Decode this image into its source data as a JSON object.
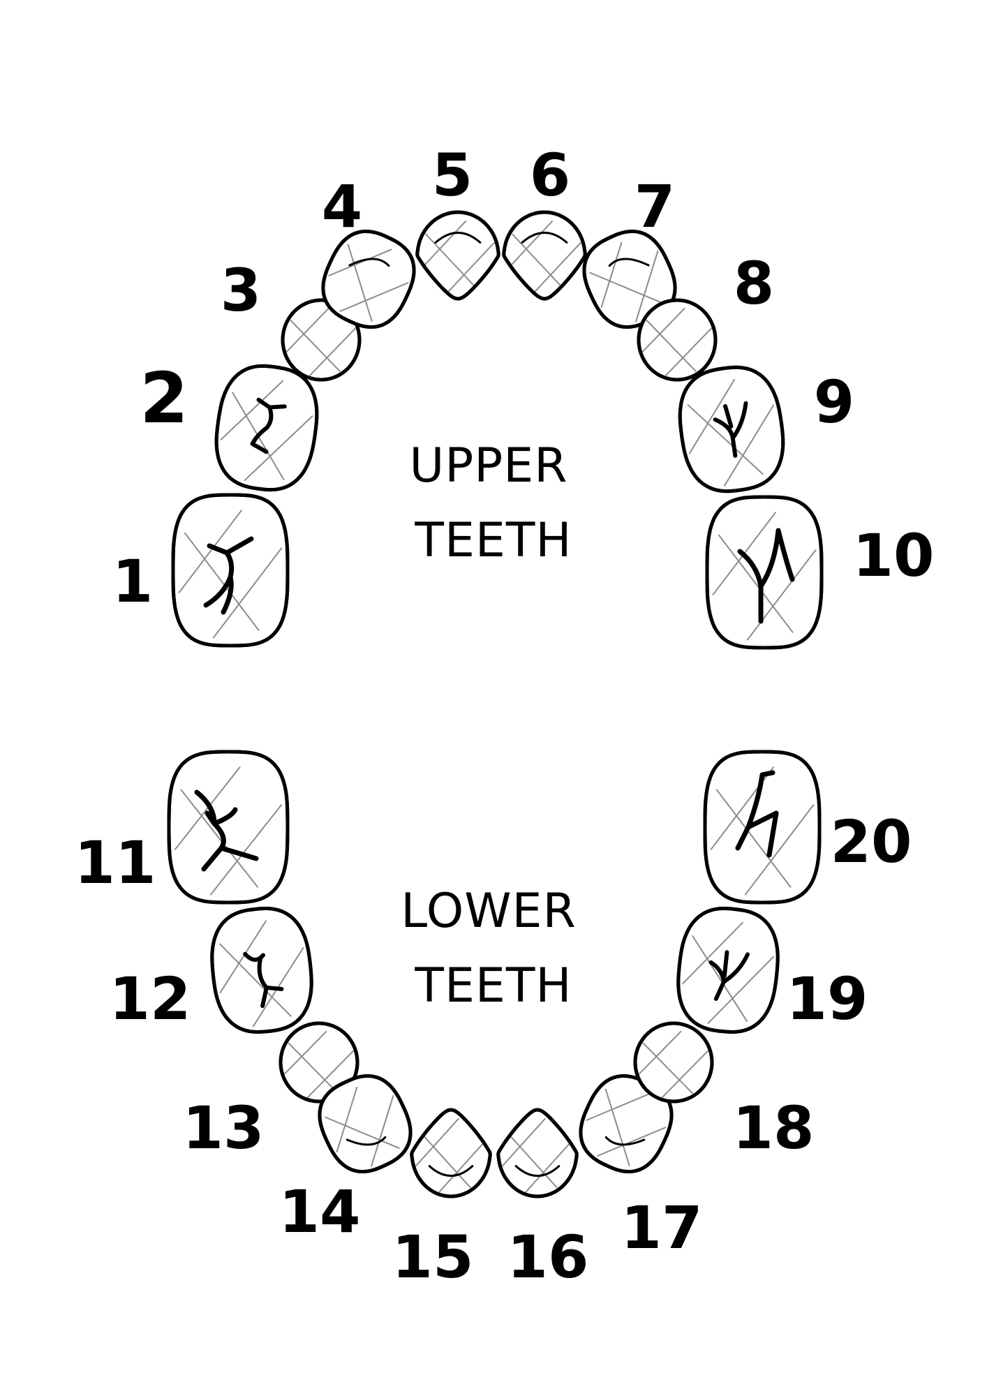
{
  "labels": {
    "upper_line1": "UPPER",
    "upper_line2": "TEETH",
    "lower_line1": "LOWER",
    "lower_line2": "TEETH"
  },
  "teeth": [
    {
      "number": "1"
    },
    {
      "number": "2"
    },
    {
      "number": "3"
    },
    {
      "number": "4"
    },
    {
      "number": "5"
    },
    {
      "number": "6"
    },
    {
      "number": "7"
    },
    {
      "number": "8"
    },
    {
      "number": "9"
    },
    {
      "number": "10"
    },
    {
      "number": "11"
    },
    {
      "number": "12"
    },
    {
      "number": "13"
    },
    {
      "number": "14"
    },
    {
      "number": "15"
    },
    {
      "number": "16"
    },
    {
      "number": "17"
    },
    {
      "number": "18"
    },
    {
      "number": "19"
    },
    {
      "number": "20"
    }
  ]
}
